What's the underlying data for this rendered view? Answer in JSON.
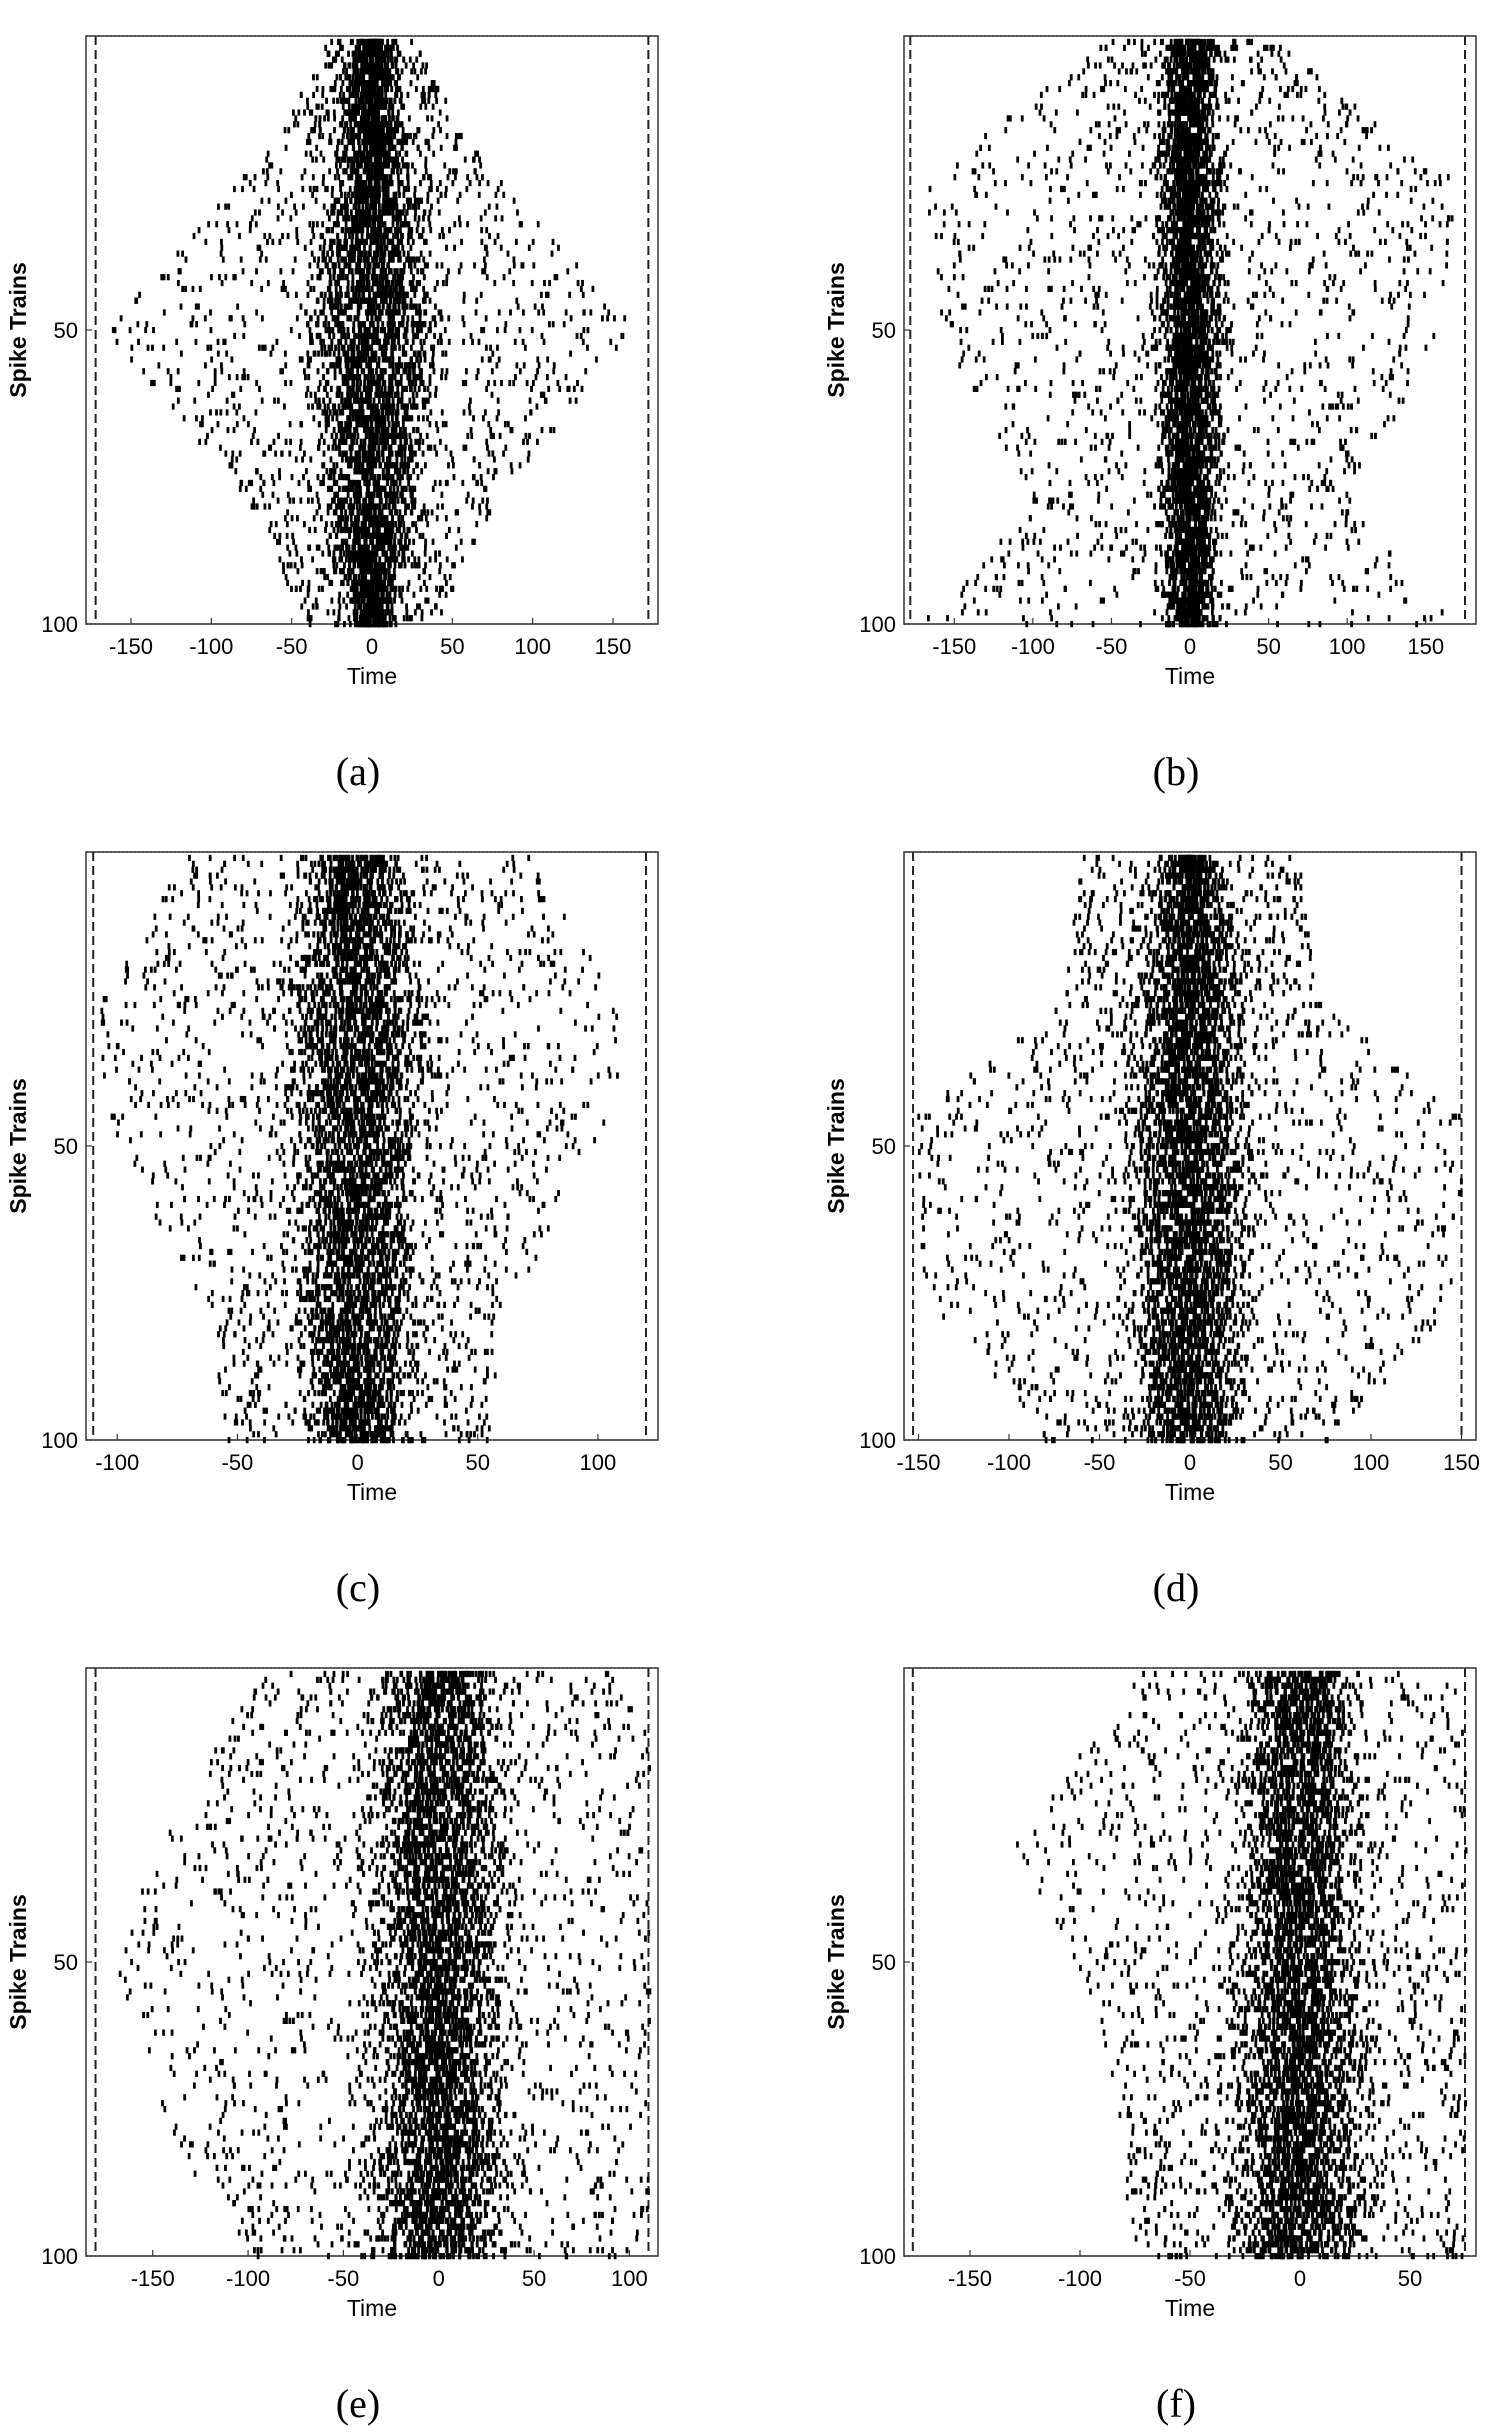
{
  "chart_data": [
    {
      "type": "scatter",
      "panel_label": "(a)",
      "xlabel": "Time",
      "ylabel": "Spike Trains",
      "xlim": [
        -178,
        178
      ],
      "ylim": [
        0,
        100
      ],
      "xticks": [
        -150,
        -100,
        -50,
        0,
        50,
        100,
        150
      ],
      "xtick_labels": [
        "-150",
        "-100",
        "-50",
        "0",
        "50",
        "100",
        "150"
      ],
      "yticks": [
        50,
        100
      ],
      "ytick_labels": [
        "50",
        "100"
      ],
      "y_inverted": true,
      "reference_lines": {
        "dashed_vertical_x": [
          -172,
          172
        ],
        "dotted_horizontal_y": [
          0,
          100
        ]
      },
      "raster_profile": [
        [
          0,
          8,
          25,
          3
        ],
        [
          18,
          14,
          60,
          4
        ],
        [
          50,
          28,
          165,
          5
        ],
        [
          78,
          20,
          80,
          4
        ],
        [
          100,
          8,
          40,
          3
        ]
      ]
    },
    {
      "type": "scatter",
      "panel_label": "(b)",
      "xlabel": "Time",
      "ylabel": "Spike Trains",
      "xlim": [
        -182,
        182
      ],
      "ylim": [
        0,
        100
      ],
      "xticks": [
        -150,
        -100,
        -50,
        0,
        50,
        100,
        150
      ],
      "xtick_labels": [
        "-150",
        "-100",
        "-50",
        "0",
        "50",
        "100",
        "150"
      ],
      "yticks": [
        50,
        100
      ],
      "ytick_labels": [
        "50",
        "100"
      ],
      "y_inverted": true,
      "reference_lines": {
        "dashed_vertical_x": [
          -178,
          175
        ],
        "dotted_horizontal_y": [
          0,
          100
        ]
      },
      "raster_profile": [
        [
          0,
          10,
          50,
          3
        ],
        [
          25,
          14,
          170,
          4
        ],
        [
          50,
          14,
          160,
          4
        ],
        [
          80,
          12,
          100,
          3
        ],
        [
          100,
          10,
          170,
          3
        ]
      ]
    },
    {
      "type": "scatter",
      "panel_label": "(c)",
      "xlabel": "Time",
      "ylabel": "Spike Trains",
      "xlim": [
        -113,
        125
      ],
      "ylim": [
        0,
        100
      ],
      "xticks": [
        -100,
        -50,
        0,
        50,
        100
      ],
      "xtick_labels": [
        "-100",
        "-50",
        "0",
        "50",
        "100"
      ],
      "yticks": [
        50,
        100
      ],
      "ytick_labels": [
        "50",
        "100"
      ],
      "y_inverted": true,
      "reference_lines": {
        "dashed_vertical_x": [
          -110,
          120
        ],
        "dotted_horizontal_y": [
          0,
          100
        ]
      },
      "raster_profile": [
        [
          0,
          12,
          70,
          4
        ],
        [
          30,
          22,
          115,
          5
        ],
        [
          50,
          18,
          100,
          4
        ],
        [
          80,
          16,
          60,
          4
        ],
        [
          100,
          12,
          55,
          4
        ]
      ]
    },
    {
      "type": "scatter",
      "panel_label": "(d)",
      "xlabel": "Time",
      "ylabel": "Spike Trains",
      "xlim": [
        -158,
        158
      ],
      "ylim": [
        0,
        100
      ],
      "xticks": [
        -150,
        -100,
        -50,
        0,
        50,
        100,
        150
      ],
      "xtick_labels": [
        "-150",
        "-100",
        "-50",
        "0",
        "50",
        "100",
        "150"
      ],
      "yticks": [
        50,
        100
      ],
      "ytick_labels": [
        "50",
        "100"
      ],
      "y_inverted": true,
      "reference_lines": {
        "dashed_vertical_x": [
          -153,
          150
        ],
        "dotted_horizontal_y": [
          0,
          100
        ]
      },
      "raster_profile": [
        [
          0,
          10,
          60,
          3
        ],
        [
          25,
          20,
          70,
          4
        ],
        [
          45,
          22,
          150,
          5
        ],
        [
          75,
          22,
          150,
          5
        ],
        [
          100,
          18,
          80,
          4
        ]
      ]
    },
    {
      "type": "scatter",
      "panel_label": "(e)",
      "xlabel": "Time",
      "ylabel": "Spike Trains",
      "xlim": [
        -185,
        115
      ],
      "ylim": [
        0,
        100
      ],
      "xticks": [
        -150,
        -100,
        -50,
        0,
        50,
        100
      ],
      "xtick_labels": [
        "-150",
        "-100",
        "-50",
        "0",
        "50",
        "100"
      ],
      "yticks": [
        50,
        100
      ],
      "ytick_labels": [
        "50",
        "100"
      ],
      "y_inverted": true,
      "reference_lines": {
        "dashed_vertical_x": [
          -180,
          110
        ],
        "dotted_horizontal_y": [
          0,
          100
        ]
      },
      "raster_profile": [
        [
          0,
          20,
          90,
          4
        ],
        [
          30,
          24,
          150,
          5
        ],
        [
          55,
          24,
          170,
          5
        ],
        [
          80,
          22,
          140,
          5
        ],
        [
          100,
          22,
          100,
          5
        ]
      ]
    },
    {
      "type": "scatter",
      "panel_label": "(f)",
      "xlabel": "Time",
      "ylabel": "Spike Trains",
      "xlim": [
        -180,
        80
      ],
      "ylim": [
        0,
        100
      ],
      "xticks": [
        -150,
        -100,
        -50,
        0,
        50
      ],
      "xtick_labels": [
        "-150",
        "-100",
        "-50",
        "0",
        "50"
      ],
      "yticks": [
        50,
        100
      ],
      "ytick_labels": [
        "50",
        "100"
      ],
      "y_inverted": true,
      "reference_lines": {
        "dashed_vertical_x": [
          -176,
          75
        ],
        "dotted_horizontal_y": [
          0,
          100
        ]
      },
      "raster_profile": [
        [
          0,
          16,
          70,
          4
        ],
        [
          30,
          18,
          130,
          4
        ],
        [
          60,
          20,
          90,
          5
        ],
        [
          100,
          20,
          75,
          5
        ]
      ]
    }
  ]
}
